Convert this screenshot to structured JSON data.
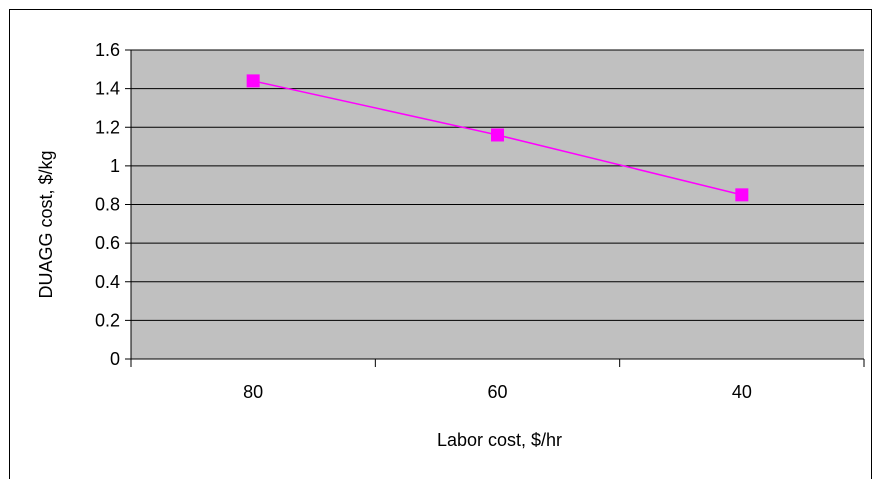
{
  "chart_data": {
    "type": "line",
    "categories": [
      "80",
      "60",
      "40"
    ],
    "series": [
      {
        "values": [
          1.44,
          1.16,
          0.85
        ]
      }
    ],
    "title": "",
    "xlabel": "Labor cost, $/hr",
    "ylabel": "DUAGG cost, $/kg",
    "ylim": [
      0,
      1.6
    ],
    "yticks": [
      "0",
      "0.2",
      "0.4",
      "0.6",
      "0.8",
      "1",
      "1.2",
      "1.4",
      "1.6"
    ],
    "grid": "horizontal",
    "legend": "none",
    "colors": {
      "plot_background": "#c0c0c0",
      "series_line": "#ff00ff",
      "marker": "#ff00ff",
      "gridline": "#000000"
    },
    "marker": "square"
  }
}
